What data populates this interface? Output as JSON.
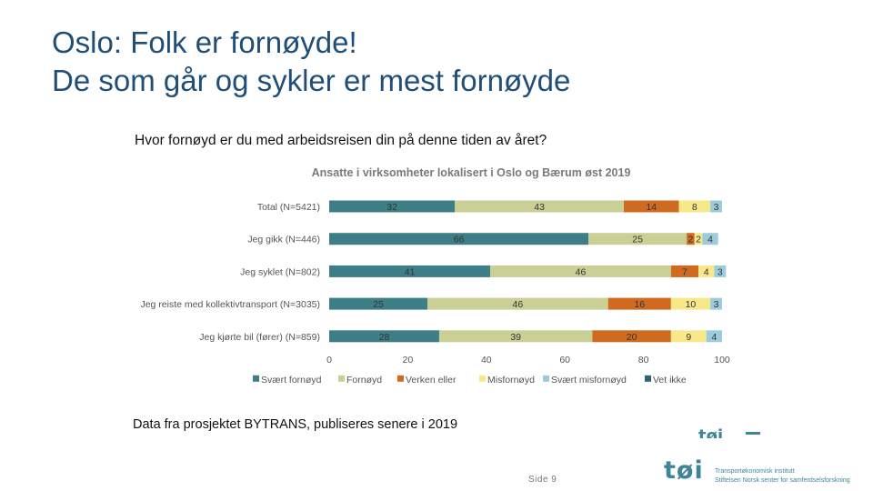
{
  "slide": {
    "title_line1": "Oslo: Folk er fornøyde!",
    "title_line2": "De som går og sykler er mest fornøyde",
    "question": "Hvor fornøyd er du med arbeidsreisen din på denne tiden av året?",
    "footnote": "Data fra prosjektet BYTRANS, publiseres senere i 2019",
    "page_number": "Side 9",
    "logo": {
      "mark": "tøi",
      "line1": "Transportøkonomisk institutt",
      "line2": "Stiftelsen Norsk senter for samferdselsforskning"
    }
  },
  "chart_data": {
    "type": "bar",
    "orientation": "horizontal",
    "stacked": true,
    "title": "Ansatte i virksomheter lokalisert i Oslo og Bærum øst 2019",
    "categories": [
      "Total (N=5421)",
      "Jeg gikk (N=446)",
      "Jeg syklet (N=802)",
      "Jeg reiste med kollektivtransport (N=3035)",
      "Jeg kjørte bil (fører) (N=859)"
    ],
    "series": [
      {
        "name": "Svært fornøyd",
        "color": "#3e7f87",
        "values": [
          32,
          66,
          41,
          25,
          28
        ]
      },
      {
        "name": "Fornøyd",
        "color": "#c9cf95",
        "values": [
          43,
          25,
          46,
          46,
          39
        ]
      },
      {
        "name": "Verken eller",
        "color": "#cf6a21",
        "values": [
          14,
          2,
          7,
          16,
          20
        ]
      },
      {
        "name": "Misfornøyd",
        "color": "#f7e98a",
        "values": [
          8,
          2,
          4,
          10,
          9
        ]
      },
      {
        "name": "Svært misfornøyd",
        "color": "#9cccdc",
        "values": [
          3,
          4,
          3,
          3,
          4
        ]
      },
      {
        "name": "Vet ikke",
        "color": "#2f6378",
        "values": [
          0,
          0,
          0,
          0,
          0
        ]
      }
    ],
    "xlim": [
      0,
      100
    ],
    "xticks": [
      0,
      20,
      40,
      60,
      80,
      100
    ],
    "legend_position": "bottom",
    "grid": false
  }
}
